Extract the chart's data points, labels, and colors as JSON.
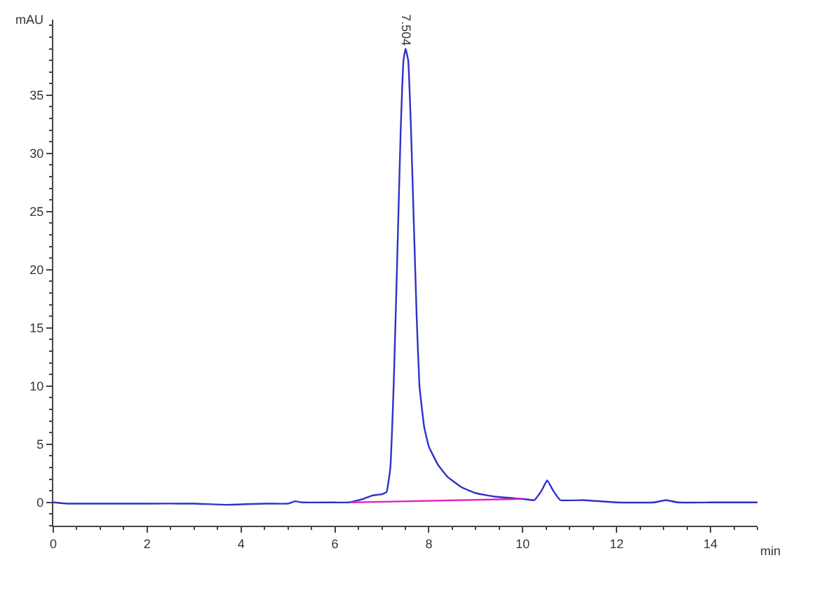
{
  "chart_data": {
    "type": "line",
    "xlabel": "min",
    "ylabel": "mAU",
    "series": [
      {
        "color": "#3030c8",
        "x": [
          0,
          0.3,
          1,
          2,
          3,
          3.7,
          4.5,
          5,
          5.15,
          5.3,
          6,
          6.3,
          6.6,
          6.8,
          7.0,
          7.1,
          7.18,
          7.25,
          7.32,
          7.4,
          7.46,
          7.504,
          7.56,
          7.62,
          7.68,
          7.74,
          7.8,
          7.9,
          8.0,
          8.2,
          8.4,
          8.7,
          9.0,
          9.4,
          10.0,
          10.25,
          10.4,
          10.52,
          10.65,
          10.8,
          11.3,
          12,
          12.8,
          13.05,
          13.3,
          14,
          15
        ],
        "values": [
          0,
          -0.1,
          -0.1,
          -0.1,
          -0.1,
          -0.2,
          -0.1,
          -0.1,
          0.1,
          0,
          0,
          0,
          0.3,
          0.6,
          0.7,
          0.9,
          3,
          10,
          20,
          32,
          38,
          39,
          38,
          32,
          24,
          16,
          10,
          6.5,
          4.8,
          3.2,
          2.2,
          1.3,
          0.8,
          0.5,
          0.3,
          0.2,
          1.0,
          1.9,
          1.0,
          0.2,
          0.2,
          0,
          0,
          0.2,
          0,
          0,
          0
        ]
      },
      {
        "color": "#e020c0",
        "x": [
          6.35,
          10.0
        ],
        "values": [
          0,
          0.3
        ]
      }
    ],
    "annotations": [
      {
        "text": "7.504",
        "x": 7.504,
        "y": 39
      }
    ],
    "xlim": [
      0,
      15
    ],
    "xticks": [
      0,
      2,
      4,
      6,
      8,
      10,
      12,
      14
    ],
    "ylim": [
      -2,
      41.5
    ],
    "yticks": [
      0,
      5,
      10,
      15,
      20,
      25,
      30,
      35
    ]
  }
}
